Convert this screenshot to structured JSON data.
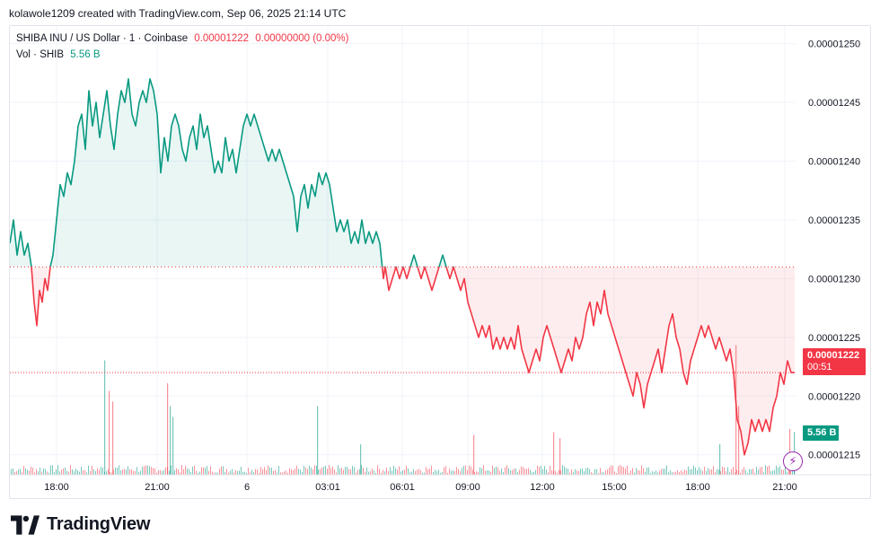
{
  "credit": "kolawole1209 created with TradingView.com, Sep 06, 2025 21:14 UTC",
  "legend": {
    "symbol": "SHIBA INU / US Dollar · 1 · Coinbase",
    "price": "0.00001222",
    "change": "0.00000000 (0.00%)",
    "vol_label": "Vol · SHIB",
    "vol_value": "5.56 B"
  },
  "badges": {
    "last_price": "0.00001222",
    "countdown": "00:51",
    "volume": "5.56 B"
  },
  "brand": {
    "name": "TradingView"
  },
  "colors": {
    "up": "#089981",
    "down": "#f23645",
    "grid": "#f0f3fa"
  },
  "chart_data": {
    "type": "area",
    "y_ticks": [
      "0.00001250",
      "0.00001245",
      "0.00001240",
      "0.00001235",
      "0.00001230",
      "0.00001225",
      "0.00001220",
      "0.00001215"
    ],
    "ylim": [
      1.2133e-05,
      1.2515e-05
    ],
    "x_ticks": [
      "18:00",
      "21:00",
      "6",
      "03:01",
      "06:01",
      "09:00",
      "12:00",
      "15:00",
      "18:00",
      "21:00"
    ],
    "baseline": 1.231e-05,
    "last_price": 1.222e-05,
    "price_points": [
      [
        0,
        1.233e-05
      ],
      [
        4,
        1.235e-05
      ],
      [
        8,
        1.232e-05
      ],
      [
        12,
        1.234e-05
      ],
      [
        16,
        1.232e-05
      ],
      [
        20,
        1.233e-05
      ],
      [
        24,
        1.231e-05
      ],
      [
        27,
        1.228e-05
      ],
      [
        30,
        1.226e-05
      ],
      [
        33,
        1.229e-05
      ],
      [
        36,
        1.228e-05
      ],
      [
        39,
        1.23e-05
      ],
      [
        42,
        1.229e-05
      ],
      [
        45,
        1.231e-05
      ],
      [
        48,
        1.232e-05
      ],
      [
        52,
        1.235e-05
      ],
      [
        56,
        1.238e-05
      ],
      [
        60,
        1.237e-05
      ],
      [
        64,
        1.239e-05
      ],
      [
        68,
        1.238e-05
      ],
      [
        72,
        1.24e-05
      ],
      [
        76,
        1.243e-05
      ],
      [
        80,
        1.244e-05
      ],
      [
        84,
        1.241e-05
      ],
      [
        88,
        1.246e-05
      ],
      [
        92,
        1.243e-05
      ],
      [
        96,
        1.245e-05
      ],
      [
        100,
        1.242e-05
      ],
      [
        104,
        1.244e-05
      ],
      [
        108,
        1.246e-05
      ],
      [
        112,
        1.243e-05
      ],
      [
        116,
        1.241e-05
      ],
      [
        120,
        1.244e-05
      ],
      [
        124,
        1.246e-05
      ],
      [
        128,
        1.245e-05
      ],
      [
        132,
        1.247e-05
      ],
      [
        136,
        1.244e-05
      ],
      [
        140,
        1.243e-05
      ],
      [
        144,
        1.245e-05
      ],
      [
        148,
        1.246e-05
      ],
      [
        152,
        1.245e-05
      ],
      [
        156,
        1.247e-05
      ],
      [
        160,
        1.246e-05
      ],
      [
        164,
        1.244e-05
      ],
      [
        168,
        1.239e-05
      ],
      [
        172,
        1.242e-05
      ],
      [
        176,
        1.24e-05
      ],
      [
        180,
        1.243e-05
      ],
      [
        184,
        1.244e-05
      ],
      [
        188,
        1.243e-05
      ],
      [
        192,
        1.241e-05
      ],
      [
        196,
        1.24e-05
      ],
      [
        200,
        1.242e-05
      ],
      [
        204,
        1.243e-05
      ],
      [
        208,
        1.241e-05
      ],
      [
        212,
        1.244e-05
      ],
      [
        216,
        1.242e-05
      ],
      [
        220,
        1.243e-05
      ],
      [
        224,
        1.241e-05
      ],
      [
        228,
        1.239e-05
      ],
      [
        232,
        1.24e-05
      ],
      [
        236,
        1.239e-05
      ],
      [
        240,
        1.242e-05
      ],
      [
        244,
        1.24e-05
      ],
      [
        248,
        1.241e-05
      ],
      [
        252,
        1.239e-05
      ],
      [
        256,
        1.241e-05
      ],
      [
        260,
        1.243e-05
      ],
      [
        264,
        1.244e-05
      ],
      [
        268,
        1.243e-05
      ],
      [
        272,
        1.244e-05
      ],
      [
        276,
        1.243e-05
      ],
      [
        280,
        1.242e-05
      ],
      [
        284,
        1.241e-05
      ],
      [
        288,
        1.24e-05
      ],
      [
        292,
        1.241e-05
      ],
      [
        296,
        1.24e-05
      ],
      [
        300,
        1.241e-05
      ],
      [
        304,
        1.24e-05
      ],
      [
        308,
        1.239e-05
      ],
      [
        312,
        1.238e-05
      ],
      [
        316,
        1.237e-05
      ],
      [
        320,
        1.234e-05
      ],
      [
        324,
        1.237e-05
      ],
      [
        328,
        1.238e-05
      ],
      [
        332,
        1.236e-05
      ],
      [
        336,
        1.238e-05
      ],
      [
        340,
        1.237e-05
      ],
      [
        344,
        1.239e-05
      ],
      [
        348,
        1.238e-05
      ],
      [
        352,
        1.239e-05
      ],
      [
        356,
        1.238e-05
      ],
      [
        360,
        1.236e-05
      ],
      [
        364,
        1.234e-05
      ],
      [
        368,
        1.235e-05
      ],
      [
        372,
        1.234e-05
      ],
      [
        376,
        1.235e-05
      ],
      [
        380,
        1.233e-05
      ],
      [
        384,
        1.234e-05
      ],
      [
        388,
        1.233e-05
      ],
      [
        392,
        1.235e-05
      ],
      [
        396,
        1.233e-05
      ],
      [
        400,
        1.234e-05
      ],
      [
        404,
        1.233e-05
      ],
      [
        408,
        1.234e-05
      ],
      [
        412,
        1.233e-05
      ],
      [
        416,
        1.23e-05
      ],
      [
        418,
        1.231e-05
      ],
      [
        422,
        1.229e-05
      ],
      [
        426,
        1.23e-05
      ],
      [
        430,
        1.231e-05
      ],
      [
        434,
        1.23e-05
      ],
      [
        438,
        1.231e-05
      ],
      [
        442,
        1.23e-05
      ],
      [
        446,
        1.231e-05
      ],
      [
        450,
        1.232e-05
      ],
      [
        454,
        1.231e-05
      ],
      [
        458,
        1.23e-05
      ],
      [
        462,
        1.231e-05
      ],
      [
        466,
        1.23e-05
      ],
      [
        470,
        1.229e-05
      ],
      [
        474,
        1.23e-05
      ],
      [
        478,
        1.231e-05
      ],
      [
        482,
        1.232e-05
      ],
      [
        486,
        1.231e-05
      ],
      [
        490,
        1.23e-05
      ],
      [
        494,
        1.231e-05
      ],
      [
        498,
        1.23e-05
      ],
      [
        502,
        1.229e-05
      ],
      [
        506,
        1.23e-05
      ],
      [
        510,
        1.228e-05
      ],
      [
        514,
        1.227e-05
      ],
      [
        518,
        1.226e-05
      ],
      [
        522,
        1.225e-05
      ],
      [
        526,
        1.226e-05
      ],
      [
        530,
        1.225e-05
      ],
      [
        534,
        1.226e-05
      ],
      [
        538,
        1.224e-05
      ],
      [
        542,
        1.225e-05
      ],
      [
        546,
        1.224e-05
      ],
      [
        550,
        1.225e-05
      ],
      [
        554,
        1.224e-05
      ],
      [
        558,
        1.225e-05
      ],
      [
        562,
        1.224e-05
      ],
      [
        566,
        1.226e-05
      ],
      [
        570,
        1.224e-05
      ],
      [
        574,
        1.223e-05
      ],
      [
        578,
        1.222e-05
      ],
      [
        582,
        1.223e-05
      ],
      [
        586,
        1.224e-05
      ],
      [
        590,
        1.223e-05
      ],
      [
        594,
        1.225e-05
      ],
      [
        598,
        1.226e-05
      ],
      [
        602,
        1.225e-05
      ],
      [
        606,
        1.224e-05
      ],
      [
        610,
        1.223e-05
      ],
      [
        614,
        1.222e-05
      ],
      [
        618,
        1.223e-05
      ],
      [
        622,
        1.224e-05
      ],
      [
        626,
        1.223e-05
      ],
      [
        630,
        1.225e-05
      ],
      [
        634,
        1.224e-05
      ],
      [
        638,
        1.225e-05
      ],
      [
        642,
        1.227e-05
      ],
      [
        646,
        1.228e-05
      ],
      [
        650,
        1.226e-05
      ],
      [
        654,
        1.228e-05
      ],
      [
        658,
        1.227e-05
      ],
      [
        662,
        1.229e-05
      ],
      [
        666,
        1.227e-05
      ],
      [
        670,
        1.226e-05
      ],
      [
        674,
        1.225e-05
      ],
      [
        678,
        1.224e-05
      ],
      [
        682,
        1.223e-05
      ],
      [
        686,
        1.222e-05
      ],
      [
        690,
        1.221e-05
      ],
      [
        694,
        1.22e-05
      ],
      [
        698,
        1.222e-05
      ],
      [
        702,
        1.221e-05
      ],
      [
        706,
        1.219e-05
      ],
      [
        710,
        1.221e-05
      ],
      [
        714,
        1.222e-05
      ],
      [
        718,
        1.223e-05
      ],
      [
        722,
        1.224e-05
      ],
      [
        726,
        1.222e-05
      ],
      [
        730,
        1.224e-05
      ],
      [
        734,
        1.226e-05
      ],
      [
        738,
        1.227e-05
      ],
      [
        742,
        1.225e-05
      ],
      [
        746,
        1.224e-05
      ],
      [
        750,
        1.222e-05
      ],
      [
        754,
        1.221e-05
      ],
      [
        758,
        1.223e-05
      ],
      [
        762,
        1.224e-05
      ],
      [
        766,
        1.225e-05
      ],
      [
        770,
        1.226e-05
      ],
      [
        774,
        1.225e-05
      ],
      [
        778,
        1.226e-05
      ],
      [
        782,
        1.225e-05
      ],
      [
        786,
        1.224e-05
      ],
      [
        790,
        1.225e-05
      ],
      [
        794,
        1.224e-05
      ],
      [
        798,
        1.223e-05
      ],
      [
        802,
        1.224e-05
      ],
      [
        806,
        1.222e-05
      ],
      [
        808,
        1.22e-05
      ],
      [
        810,
        1.218e-05
      ],
      [
        814,
        1.217e-05
      ],
      [
        818,
        1.215e-05
      ],
      [
        822,
        1.216e-05
      ],
      [
        826,
        1.218e-05
      ],
      [
        830,
        1.217e-05
      ],
      [
        834,
        1.218e-05
      ],
      [
        838,
        1.217e-05
      ],
      [
        842,
        1.218e-05
      ],
      [
        846,
        1.217e-05
      ],
      [
        850,
        1.219e-05
      ],
      [
        854,
        1.22e-05
      ],
      [
        858,
        1.222e-05
      ],
      [
        862,
        1.221e-05
      ],
      [
        866,
        1.223e-05
      ],
      [
        870,
        1.222e-05
      ],
      [
        874,
        1.222e-05
      ]
    ],
    "volume_spikes": [
      [
        105,
        0.75
      ],
      [
        110,
        0.55
      ],
      [
        114,
        0.48
      ],
      [
        175,
        0.6
      ],
      [
        178,
        0.45
      ],
      [
        181,
        0.38
      ],
      [
        342,
        0.45
      ],
      [
        390,
        0.2
      ],
      [
        516,
        0.26
      ],
      [
        605,
        0.28
      ],
      [
        612,
        0.24
      ],
      [
        790,
        0.2
      ],
      [
        808,
        0.85
      ],
      [
        811,
        0.45
      ],
      [
        868,
        0.3
      ],
      [
        873,
        0.28
      ]
    ]
  }
}
